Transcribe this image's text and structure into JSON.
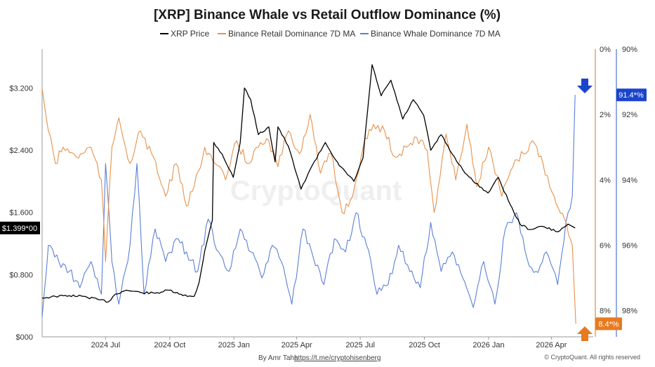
{
  "chart_data": {
    "type": "line",
    "title": "[XRP] Binance Whale vs Retail Outflow Dominance (%)",
    "legend": {
      "placement": "top-center"
    },
    "x_ticks": [
      "2024 Jul",
      "2024 Oct",
      "2025 Jan",
      "2025 Apr",
      "2025 Jul",
      "2025 Oct",
      "2026 Jan",
      "2026 Apr"
    ],
    "x_range": [
      "2024-04-01",
      "2026-05-31"
    ],
    "y_left": {
      "ticks": [
        "$000",
        "$0.800",
        "$1.600",
        "$2.400",
        "$3.200"
      ],
      "range": [
        0,
        3.7
      ]
    },
    "y_right1": {
      "ticks": [
        "0%",
        "2%",
        "4%",
        "6%",
        "8%"
      ],
      "range": [
        0,
        8.8
      ],
      "inverted": true
    },
    "y_right2": {
      "ticks": [
        "90%",
        "92%",
        "94%",
        "96%",
        "98%"
      ],
      "range": [
        90,
        98.8
      ],
      "inverted": true
    },
    "series": [
      {
        "name": "XRP Price",
        "color": "#000000",
        "axis": "left",
        "points": [
          [
            "2024-04-01",
            0.5
          ],
          [
            "2024-04-20",
            0.52
          ],
          [
            "2024-05-10",
            0.53
          ],
          [
            "2024-05-30",
            0.52
          ],
          [
            "2024-06-20",
            0.48
          ],
          [
            "2024-07-05",
            0.45
          ],
          [
            "2024-07-15",
            0.55
          ],
          [
            "2024-07-31",
            0.6
          ],
          [
            "2024-08-20",
            0.57
          ],
          [
            "2024-09-10",
            0.56
          ],
          [
            "2024-09-30",
            0.6
          ],
          [
            "2024-10-20",
            0.53
          ],
          [
            "2024-11-05",
            0.52
          ],
          [
            "2024-11-12",
            0.7
          ],
          [
            "2024-11-20",
            1.1
          ],
          [
            "2024-12-01",
            1.5
          ],
          [
            "2024-12-03",
            2.5
          ],
          [
            "2024-12-15",
            2.35
          ],
          [
            "2024-12-31",
            2.05
          ],
          [
            "2025-01-10",
            2.5
          ],
          [
            "2025-01-16",
            3.2
          ],
          [
            "2025-01-25",
            3.05
          ],
          [
            "2025-02-05",
            2.6
          ],
          [
            "2025-02-20",
            2.7
          ],
          [
            "2025-03-01",
            2.25
          ],
          [
            "2025-03-05",
            2.7
          ],
          [
            "2025-03-20",
            2.45
          ],
          [
            "2025-04-07",
            1.9
          ],
          [
            "2025-04-20",
            2.15
          ],
          [
            "2025-05-12",
            2.5
          ],
          [
            "2025-06-01",
            2.2
          ],
          [
            "2025-06-22",
            2.0
          ],
          [
            "2025-07-05",
            2.3
          ],
          [
            "2025-07-18",
            3.5
          ],
          [
            "2025-07-31",
            3.1
          ],
          [
            "2025-08-14",
            3.3
          ],
          [
            "2025-08-31",
            2.8
          ],
          [
            "2025-09-15",
            3.05
          ],
          [
            "2025-09-30",
            2.85
          ],
          [
            "2025-10-10",
            2.4
          ],
          [
            "2025-10-25",
            2.6
          ],
          [
            "2025-11-10",
            2.35
          ],
          [
            "2025-11-25",
            2.15
          ],
          [
            "2025-12-10",
            2.0
          ],
          [
            "2025-12-31",
            1.85
          ],
          [
            "2026-01-15",
            2.05
          ],
          [
            "2026-02-01",
            1.7
          ],
          [
            "2026-02-15",
            1.45
          ],
          [
            "2026-03-01",
            1.38
          ],
          [
            "2026-03-20",
            1.42
          ],
          [
            "2026-04-10",
            1.35
          ],
          [
            "2026-04-25",
            1.45
          ],
          [
            "2026-05-05",
            1.4
          ]
        ]
      },
      {
        "name": "Binance Retail Dominance 7D MA",
        "color": "#e8914a",
        "axis": "right1",
        "points": [
          [
            "2024-04-01",
            1.2
          ],
          [
            "2024-04-10",
            2.5
          ],
          [
            "2024-04-20",
            3.5
          ],
          [
            "2024-05-01",
            3.0
          ],
          [
            "2024-05-20",
            3.3
          ],
          [
            "2024-06-10",
            3.0
          ],
          [
            "2024-06-25",
            4.0
          ],
          [
            "2024-07-01",
            6.5
          ],
          [
            "2024-07-10",
            3.0
          ],
          [
            "2024-07-20",
            2.1
          ],
          [
            "2024-08-05",
            3.5
          ],
          [
            "2024-08-20",
            2.5
          ],
          [
            "2024-09-05",
            3.2
          ],
          [
            "2024-09-25",
            4.5
          ],
          [
            "2024-10-10",
            3.5
          ],
          [
            "2024-10-25",
            4.8
          ],
          [
            "2024-11-05",
            4.2
          ],
          [
            "2024-11-20",
            3.0
          ],
          [
            "2024-12-05",
            3.5
          ],
          [
            "2024-12-20",
            4.0
          ],
          [
            "2025-01-05",
            2.8
          ],
          [
            "2025-01-20",
            3.5
          ],
          [
            "2025-02-05",
            3.0
          ],
          [
            "2025-02-20",
            2.8
          ],
          [
            "2025-03-05",
            3.6
          ],
          [
            "2025-03-20",
            2.5
          ],
          [
            "2025-04-05",
            3.2
          ],
          [
            "2025-04-20",
            2.0
          ],
          [
            "2025-05-05",
            3.8
          ],
          [
            "2025-05-20",
            3.2
          ],
          [
            "2025-06-05",
            5.0
          ],
          [
            "2025-06-20",
            4.5
          ],
          [
            "2025-07-05",
            3.0
          ],
          [
            "2025-07-20",
            2.3
          ],
          [
            "2025-08-05",
            2.5
          ],
          [
            "2025-08-20",
            3.3
          ],
          [
            "2025-09-05",
            3.0
          ],
          [
            "2025-09-20",
            2.7
          ],
          [
            "2025-10-05",
            3.1
          ],
          [
            "2025-10-15",
            5.0
          ],
          [
            "2025-11-01",
            2.6
          ],
          [
            "2025-11-15",
            4.0
          ],
          [
            "2025-12-01",
            2.3
          ],
          [
            "2025-12-15",
            4.2
          ],
          [
            "2026-01-01",
            3.0
          ],
          [
            "2026-01-20",
            4.5
          ],
          [
            "2026-02-05",
            3.6
          ],
          [
            "2026-02-20",
            3.2
          ],
          [
            "2026-03-05",
            2.8
          ],
          [
            "2026-03-20",
            3.5
          ],
          [
            "2026-04-05",
            4.5
          ],
          [
            "2026-04-20",
            5.2
          ],
          [
            "2026-05-01",
            6.0
          ],
          [
            "2026-05-06",
            8.4
          ]
        ]
      },
      {
        "name": "Binance Whale Dominance 7D MA",
        "color": "#5b7fd4",
        "axis": "right2",
        "points": [
          [
            "2024-04-01",
            98.2
          ],
          [
            "2024-04-10",
            96.0
          ],
          [
            "2024-04-25",
            96.5
          ],
          [
            "2024-05-10",
            96.8
          ],
          [
            "2024-05-25",
            97.3
          ],
          [
            "2024-06-10",
            96.5
          ],
          [
            "2024-06-25",
            97.5
          ],
          [
            "2024-07-01",
            93.5
          ],
          [
            "2024-07-10",
            96.5
          ],
          [
            "2024-07-20",
            97.8
          ],
          [
            "2024-08-05",
            96.0
          ],
          [
            "2024-08-15",
            93.5
          ],
          [
            "2024-08-25",
            97.5
          ],
          [
            "2024-09-10",
            95.5
          ],
          [
            "2024-09-25",
            96.5
          ],
          [
            "2024-10-10",
            95.8
          ],
          [
            "2024-10-25",
            96.2
          ],
          [
            "2024-11-10",
            96.8
          ],
          [
            "2024-11-25",
            95.2
          ],
          [
            "2024-12-10",
            96.2
          ],
          [
            "2024-12-25",
            96.8
          ],
          [
            "2025-01-10",
            95.5
          ],
          [
            "2025-01-25",
            96.2
          ],
          [
            "2025-02-10",
            97.0
          ],
          [
            "2025-02-25",
            96.0
          ],
          [
            "2025-03-10",
            96.5
          ],
          [
            "2025-03-25",
            97.8
          ],
          [
            "2025-04-10",
            95.5
          ],
          [
            "2025-04-25",
            96.4
          ],
          [
            "2025-05-10",
            97.2
          ],
          [
            "2025-05-25",
            95.8
          ],
          [
            "2025-06-10",
            96.2
          ],
          [
            "2025-06-25",
            95.0
          ],
          [
            "2025-07-10",
            96.0
          ],
          [
            "2025-07-25",
            97.5
          ],
          [
            "2025-08-10",
            97.2
          ],
          [
            "2025-08-25",
            96.0
          ],
          [
            "2025-09-10",
            96.8
          ],
          [
            "2025-09-25",
            97.3
          ],
          [
            "2025-10-10",
            95.3
          ],
          [
            "2025-10-25",
            96.8
          ],
          [
            "2025-11-10",
            96.2
          ],
          [
            "2025-11-25",
            97.0
          ],
          [
            "2025-12-10",
            97.9
          ],
          [
            "2025-12-25",
            96.5
          ],
          [
            "2026-01-10",
            97.8
          ],
          [
            "2026-01-25",
            95.5
          ],
          [
            "2026-02-10",
            95.0
          ],
          [
            "2026-02-25",
            96.4
          ],
          [
            "2026-03-10",
            96.8
          ],
          [
            "2026-03-25",
            96.2
          ],
          [
            "2026-04-10",
            97.2
          ],
          [
            "2026-04-25",
            95.0
          ],
          [
            "2026-05-01",
            94.5
          ],
          [
            "2026-05-05",
            91.4
          ]
        ]
      }
    ],
    "annotations": [
      {
        "label": "91.4*%",
        "color": "#1a44cc",
        "axis": "right2"
      },
      {
        "label": "8.4*%",
        "color": "#e87a1f",
        "axis": "right1"
      },
      {
        "label": "$1.399*00",
        "color": "#000000",
        "axis": "left"
      }
    ],
    "watermark": "CryptoQuant",
    "footer": {
      "author": "By Amr Taha",
      "link": "https://t.me/cryptohisenberg",
      "copyright": "© CryptoQuant. All rights reserved"
    }
  }
}
